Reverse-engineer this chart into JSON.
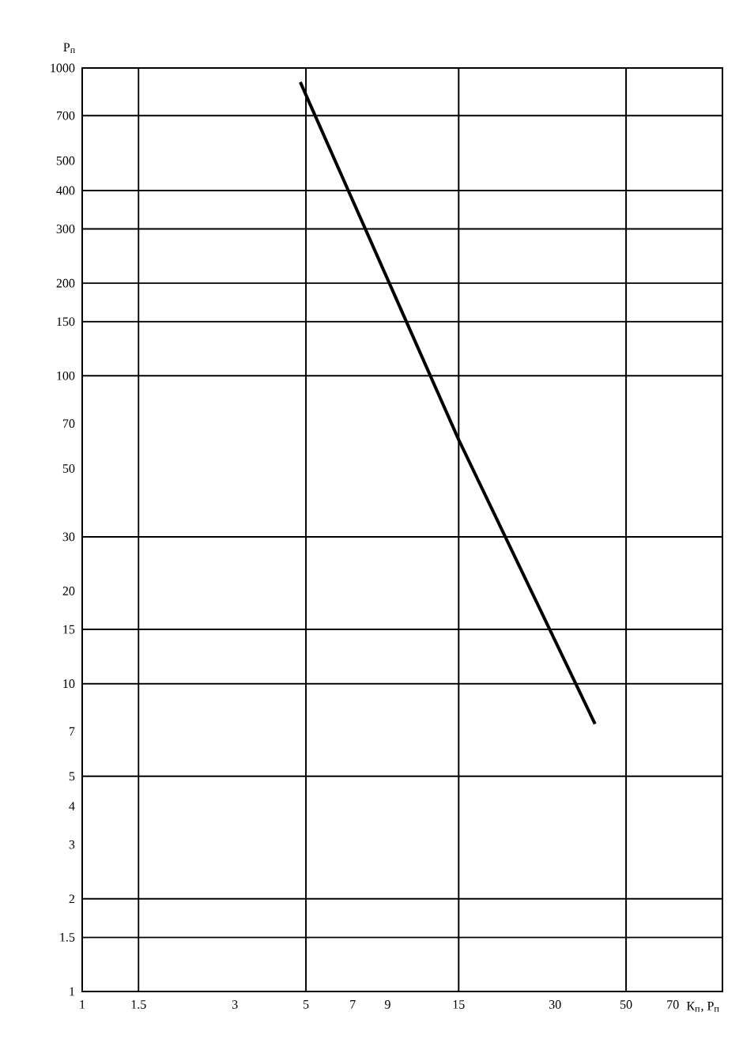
{
  "chart_data": {
    "type": "line",
    "xlabel": "К$_{п}$, Р$_{п}$",
    "ylabel": "Р$_{п}$",
    "log": "xy",
    "xlim": [
      1,
      100
    ],
    "ylim": [
      1,
      1000
    ],
    "xticks": [
      1,
      1.5,
      3,
      5,
      7,
      9,
      15,
      30,
      50,
      70
    ],
    "yticks": [
      1,
      1.5,
      2,
      3,
      4,
      5,
      7,
      10,
      15,
      20,
      30,
      50,
      70,
      100,
      150,
      200,
      300,
      400,
      500,
      700,
      1000
    ],
    "grid": false,
    "series": [
      {
        "color": "#000000",
        "x": [
          4.8,
          15,
          40
        ],
        "values": [
          900,
          62,
          7.4
        ]
      }
    ],
    "ref_lines": [
      {
        "axis": "x",
        "value": 1.5,
        "color": "#000000"
      },
      {
        "axis": "x",
        "value": 5,
        "color": "#000000"
      },
      {
        "axis": "x",
        "value": 15,
        "color": "#000000"
      },
      {
        "axis": "x",
        "value": 50,
        "color": "#000000"
      },
      {
        "axis": "y",
        "value": 1.5,
        "color": "#000000"
      },
      {
        "axis": "y",
        "value": 2,
        "color": "#000000"
      },
      {
        "axis": "y",
        "value": 5,
        "color": "#000000"
      },
      {
        "axis": "y",
        "value": 10,
        "color": "#000000"
      },
      {
        "axis": "y",
        "value": 15,
        "color": "#000000"
      },
      {
        "axis": "y",
        "value": 30,
        "color": "#000000"
      },
      {
        "axis": "y",
        "value": 100,
        "color": "#000000"
      },
      {
        "axis": "y",
        "value": 150,
        "color": "#000000"
      },
      {
        "axis": "y",
        "value": 200,
        "color": "#000000"
      },
      {
        "axis": "y",
        "value": 300,
        "color": "#000000"
      },
      {
        "axis": "y",
        "value": 400,
        "color": "#000000"
      },
      {
        "axis": "y",
        "value": 700,
        "color": "#000000"
      }
    ]
  }
}
